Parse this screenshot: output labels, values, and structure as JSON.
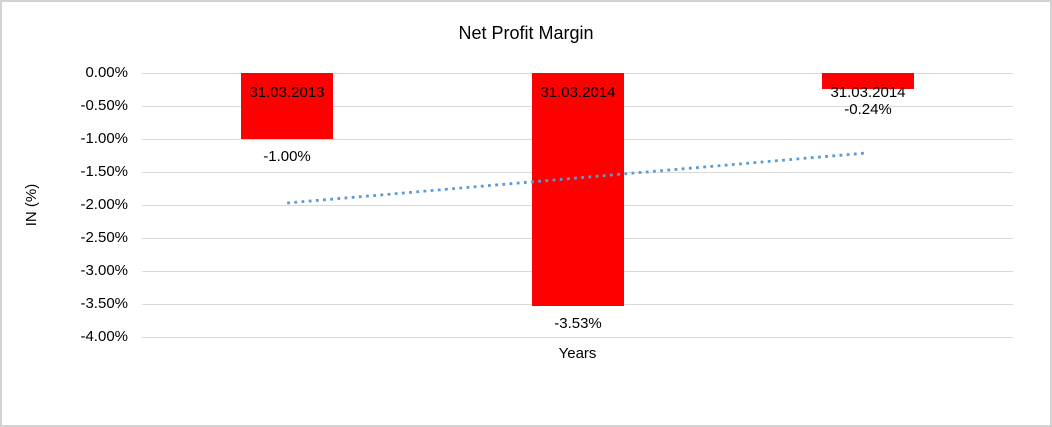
{
  "chart_data": {
    "type": "bar",
    "title": "Net Profit Margin",
    "xlabel": "Years",
    "ylabel": "IN (%)",
    "categories": [
      "31.03.2013",
      "31.03.2014",
      "31.03.2014"
    ],
    "values": [
      -1.0,
      -3.53,
      -0.24
    ],
    "value_labels": [
      "-1.00%",
      "-3.53%",
      "-0.24%"
    ],
    "ylim": [
      -4.0,
      0.0
    ],
    "ytick_step": 0.5,
    "ytick_labels": [
      "0.00%",
      "-0.50%",
      "-1.00%",
      "-1.50%",
      "-2.00%",
      "-2.50%",
      "-3.00%",
      "-3.50%",
      "-4.00%"
    ],
    "bar_color": "#ff0000",
    "gridline_color": "#d9d9d9",
    "text_color": "#000000",
    "grid": true,
    "legend": false,
    "trendline": {
      "type": "linear",
      "style": "dotted",
      "color": "#5b9bd5",
      "start_value": -1.97,
      "end_value": -1.21
    }
  }
}
